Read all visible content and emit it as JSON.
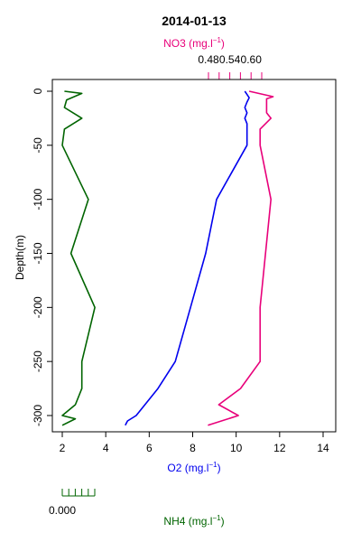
{
  "chart_data": {
    "type": "line",
    "title": "2014-01-13",
    "ylabel": "Depth(m)",
    "ylim": [
      0,
      -310
    ],
    "y_ticks": [
      0,
      -50,
      -100,
      -150,
      -200,
      -250,
      -300
    ],
    "grid": false,
    "axes": {
      "o2": {
        "label": "O2 (mg.l",
        "label_sup": "−1",
        "label_end": ")",
        "xlim": [
          1.8,
          14.5
        ],
        "ticks": [
          2,
          4,
          6,
          8,
          10,
          12,
          14
        ],
        "tick_labels": [
          "2",
          "4",
          "6",
          "8",
          "10",
          "12",
          "14"
        ],
        "color": "#0000ee"
      },
      "no3": {
        "label": "NO3 (mg.l",
        "label_sup": "−1",
        "label_end": ")",
        "ticks": [
          0.48,
          0.51,
          0.54,
          0.57,
          0.6,
          0.63
        ],
        "tick_labels": [
          "0.48",
          "0.54",
          "0.60"
        ],
        "labeled_ticks": [
          0.48,
          0.54,
          0.6
        ],
        "color": "#e8007a"
      },
      "nh4": {
        "label": "NH4 (mg.l",
        "label_sup": "−1",
        "label_end": ")",
        "tick_labels": [
          "0.000"
        ],
        "color": "#006400"
      }
    },
    "series": [
      {
        "key": "o2",
        "color": "#0000ee",
        "points": [
          [
            10.4,
            0
          ],
          [
            10.5,
            -3
          ],
          [
            10.6,
            -6
          ],
          [
            10.5,
            -10
          ],
          [
            10.4,
            -15
          ],
          [
            10.5,
            -20
          ],
          [
            10.4,
            -25
          ],
          [
            10.5,
            -30
          ],
          [
            10.5,
            -50
          ],
          [
            9.1,
            -100
          ],
          [
            8.6,
            -150
          ],
          [
            7.9,
            -200
          ],
          [
            7.2,
            -250
          ],
          [
            6.4,
            -275
          ],
          [
            5.4,
            -300
          ],
          [
            5.0,
            -305
          ],
          [
            4.9,
            -309
          ]
        ]
      },
      {
        "key": "no3",
        "x_units": "o2",
        "color": "#e8007a",
        "points": [
          [
            10.6,
            0
          ],
          [
            11.7,
            -5
          ],
          [
            11.4,
            -7
          ],
          [
            11.4,
            -20
          ],
          [
            11.6,
            -25
          ],
          [
            11.1,
            -35
          ],
          [
            11.1,
            -50
          ],
          [
            11.6,
            -100
          ],
          [
            11.1,
            -200
          ],
          [
            11.1,
            -250
          ],
          [
            10.2,
            -275
          ],
          [
            9.2,
            -290
          ],
          [
            10.1,
            -300
          ],
          [
            8.7,
            -309
          ]
        ]
      },
      {
        "key": "nh4",
        "x_units": "o2",
        "color": "#006400",
        "points": [
          [
            2.1,
            0
          ],
          [
            2.9,
            -2
          ],
          [
            2.2,
            -8
          ],
          [
            2.1,
            -15
          ],
          [
            2.5,
            -20
          ],
          [
            2.9,
            -25
          ],
          [
            2.1,
            -35
          ],
          [
            2.0,
            -50
          ],
          [
            3.2,
            -100
          ],
          [
            2.4,
            -150
          ],
          [
            3.5,
            -200
          ],
          [
            2.9,
            -250
          ],
          [
            2.9,
            -275
          ],
          [
            2.6,
            -290
          ],
          [
            2.0,
            -300
          ],
          [
            2.6,
            -303
          ],
          [
            2.0,
            -309
          ]
        ]
      }
    ]
  }
}
